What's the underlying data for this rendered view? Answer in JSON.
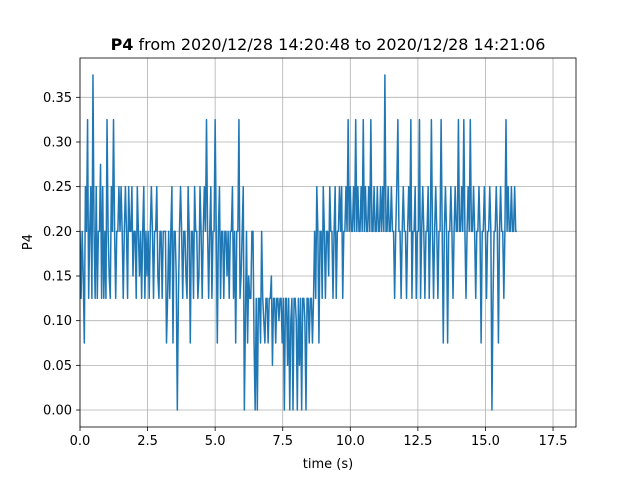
{
  "chart_data": {
    "type": "line",
    "title_bold": "P4",
    "title_rest": " from 2020/12/28 14:20:48 to 2020/12/28 14:21:06",
    "xlabel": "time (s)",
    "ylabel": "P4",
    "xlim": [
      0.0,
      18.35
    ],
    "ylim": [
      -0.019,
      0.394
    ],
    "grid": true,
    "xticks": [
      0.0,
      2.5,
      5.0,
      7.5,
      10.0,
      12.5,
      15.0,
      17.5
    ],
    "xtick_labels": [
      "0.0",
      "2.5",
      "5.0",
      "7.5",
      "10.0",
      "12.5",
      "15.0",
      "17.5"
    ],
    "yticks": [
      0.0,
      0.05,
      0.1,
      0.15,
      0.2,
      0.25,
      0.3,
      0.35
    ],
    "ytick_labels": [
      "0.00",
      "0.05",
      "0.10",
      "0.15",
      "0.20",
      "0.25",
      "0.30",
      "0.35"
    ],
    "line_color": "#1f77b4",
    "grid_color": "#b0b0b0",
    "sample_interval": 0.04,
    "series": [
      {
        "values": [
          0.2,
          0.125,
          0.2,
          0.15,
          0.075,
          0.25,
          0.2,
          0.325,
          0.125,
          0.2,
          0.25,
          0.125,
          0.375,
          0.2,
          0.125,
          0.25,
          0.125,
          0.2,
          0.2,
          0.275,
          0.125,
          0.25,
          0.125,
          0.2,
          0.125,
          0.325,
          0.2,
          0.15,
          0.125,
          0.25,
          0.2,
          0.325,
          0.2,
          0.125,
          0.2,
          0.2,
          0.25,
          0.2,
          0.25,
          0.2,
          0.125,
          0.2,
          0.25,
          0.2,
          0.125,
          0.25,
          0.2,
          0.2,
          0.25,
          0.15,
          0.2,
          0.2,
          0.125,
          0.25,
          0.2,
          0.15,
          0.2,
          0.125,
          0.2,
          0.25,
          0.125,
          0.2,
          0.15,
          0.2,
          0.125,
          0.2,
          0.25,
          0.2,
          0.125,
          0.2,
          0.2,
          0.25,
          0.15,
          0.125,
          0.2,
          0.2,
          0.125,
          0.2,
          0.2,
          0.2,
          0.075,
          0.125,
          0.2,
          0.125,
          0.2,
          0.25,
          0.075,
          0.2,
          0.2,
          0.15,
          0.0,
          0.125,
          0.2,
          0.25,
          0.2,
          0.125,
          0.2,
          0.2,
          0.15,
          0.125,
          0.25,
          0.2,
          0.075,
          0.2,
          0.2,
          0.125,
          0.25,
          0.2,
          0.2,
          0.125,
          0.15,
          0.25,
          0.2,
          0.125,
          0.2,
          0.25,
          0.2,
          0.325,
          0.2,
          0.125,
          0.2,
          0.25,
          0.125,
          0.2,
          0.2,
          0.325,
          0.2,
          0.075,
          0.2,
          0.25,
          0.125,
          0.2,
          0.2,
          0.125,
          0.2,
          0.2,
          0.15,
          0.2,
          0.125,
          0.2,
          0.2,
          0.25,
          0.125,
          0.2,
          0.075,
          0.2,
          0.2,
          0.325,
          0.125,
          0.15,
          0.2,
          0.25,
          0.0,
          0.1,
          0.2,
          0.075,
          0.15,
          0.125,
          0.125,
          0.2,
          0.2,
          0.075,
          0.0,
          0.125,
          0.0,
          0.125,
          0.125,
          0.075,
          0.2,
          0.125,
          0.1,
          0.075,
          0.125,
          0.125,
          0.075,
          0.125,
          0.125,
          0.15,
          0.05,
          0.125,
          0.125,
          0.075,
          0.125,
          0.125,
          0.1,
          0.125,
          0.125,
          0.075,
          0.125,
          0.0,
          0.125,
          0.125,
          0.05,
          0.125,
          0.0,
          0.1,
          0.125,
          0.0,
          0.125,
          0.125,
          0.1,
          0.0,
          0.125,
          0.05,
          0.125,
          0.0,
          0.125,
          0.125,
          0.1,
          0.0,
          0.125,
          0.125,
          0.075,
          0.125,
          0.125,
          0.075,
          0.125,
          0.2,
          0.125,
          0.25,
          0.2,
          0.075,
          0.2,
          0.2,
          0.125,
          0.25,
          0.2,
          0.125,
          0.2,
          0.2,
          0.15,
          0.25,
          0.2,
          0.2,
          0.125,
          0.2,
          0.25,
          0.125,
          0.2,
          0.2,
          0.25,
          0.2,
          0.25,
          0.125,
          0.2,
          0.2,
          0.25,
          0.2,
          0.325,
          0.2,
          0.25,
          0.2,
          0.2,
          0.25,
          0.2,
          0.325,
          0.2,
          0.25,
          0.2,
          0.2,
          0.25,
          0.2,
          0.325,
          0.2,
          0.25,
          0.2,
          0.2,
          0.25,
          0.2,
          0.325,
          0.2,
          0.2,
          0.25,
          0.2,
          0.2,
          0.25,
          0.2,
          0.2,
          0.25,
          0.2,
          0.25,
          0.2,
          0.375,
          0.2,
          0.2,
          0.25,
          0.2,
          0.2,
          0.25,
          0.2,
          0.2,
          0.125,
          0.2,
          0.25,
          0.325,
          0.2,
          0.2,
          0.125,
          0.2,
          0.25,
          0.2,
          0.2,
          0.125,
          0.2,
          0.25,
          0.2,
          0.325,
          0.125,
          0.2,
          0.2,
          0.25,
          0.125,
          0.2,
          0.2,
          0.325,
          0.125,
          0.2,
          0.25,
          0.2,
          0.125,
          0.2,
          0.2,
          0.25,
          0.125,
          0.2,
          0.325,
          0.2,
          0.125,
          0.2,
          0.25,
          0.2,
          0.125,
          0.2,
          0.2,
          0.325,
          0.2,
          0.075,
          0.2,
          0.25,
          0.2,
          0.075,
          0.2,
          0.2,
          0.25,
          0.2,
          0.125,
          0.2,
          0.25,
          0.2,
          0.2,
          0.325,
          0.2,
          0.2,
          0.25,
          0.2,
          0.325,
          0.2,
          0.125,
          0.2,
          0.25,
          0.2,
          0.325,
          0.2,
          0.2,
          0.25,
          0.2,
          0.125,
          0.2,
          0.2,
          0.25,
          0.2,
          0.075,
          0.2,
          0.2,
          0.25,
          0.2,
          0.125,
          0.2,
          0.2,
          0.25,
          0.2,
          0.0,
          0.125,
          0.2,
          0.2,
          0.25,
          0.2,
          0.075,
          0.2,
          0.25,
          0.2,
          0.2,
          0.125,
          0.2,
          0.325,
          0.2,
          0.25,
          0.2,
          0.2,
          0.25,
          0.2,
          0.2,
          0.25,
          0.2,
          0.2
        ]
      }
    ]
  }
}
